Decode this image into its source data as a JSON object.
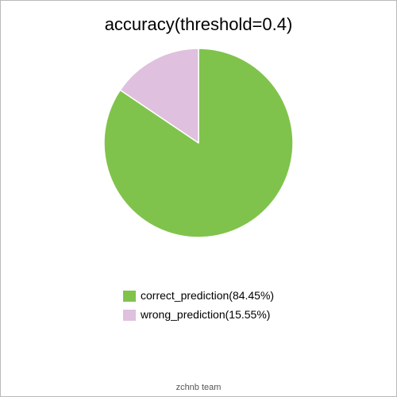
{
  "chart_data": {
    "type": "pie",
    "title": "accuracy(threshold=0.4)",
    "categories": [
      "correct_prediction",
      "wrong_prediction"
    ],
    "values": [
      84.45,
      15.55
    ],
    "unit": "%",
    "colors": [
      "#80c34c",
      "#dfc0de"
    ],
    "start_angle": "12 o'clock",
    "direction": "clockwise",
    "legend_position": "bottom-center",
    "legend": [
      {
        "label": "correct_prediction(84.45%)",
        "color": "#80c34c"
      },
      {
        "label": "wrong_prediction(15.55%)",
        "color": "#dfc0de"
      }
    ]
  },
  "footer": "zchnb team"
}
